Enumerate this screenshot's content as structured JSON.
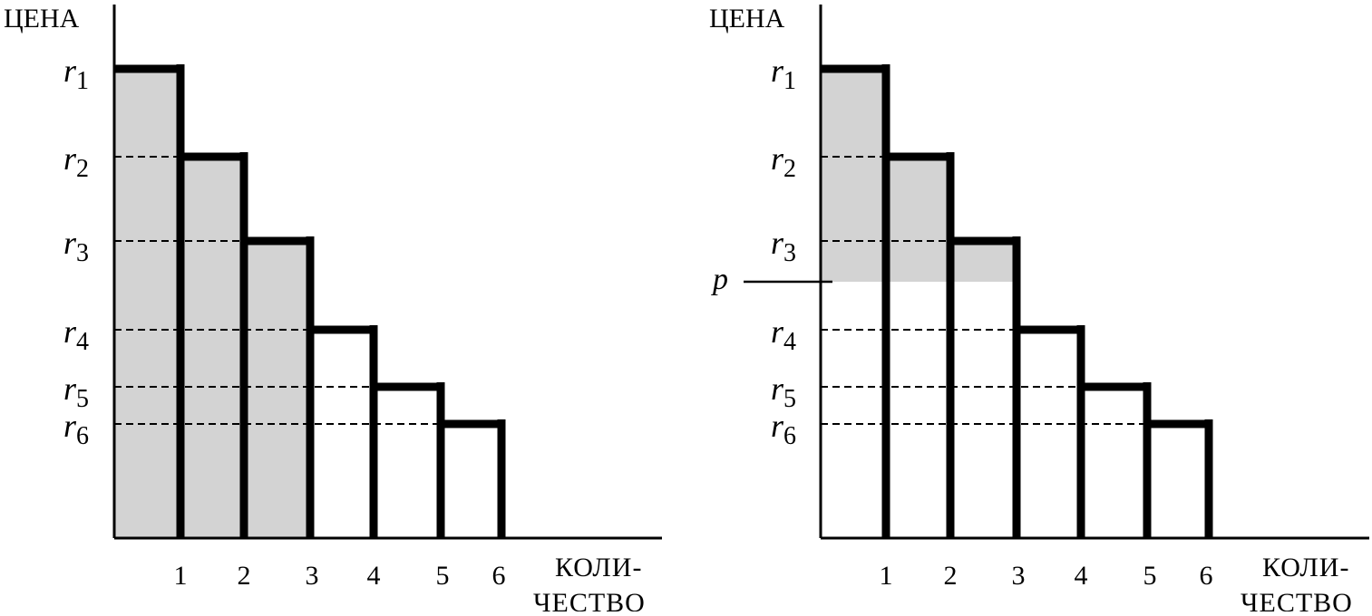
{
  "panels": [
    {
      "id": "left",
      "y_axis_label": "ЦЕНА",
      "x_axis_label_line1": "КОЛИ-",
      "x_axis_label_line2": "ЧЕСТВО",
      "price_levels": [
        {
          "letter": "r",
          "sub": "1"
        },
        {
          "letter": "r",
          "sub": "2"
        },
        {
          "letter": "r",
          "sub": "3"
        },
        {
          "letter": "r",
          "sub": "4"
        },
        {
          "letter": "r",
          "sub": "5"
        },
        {
          "letter": "r",
          "sub": "6"
        }
      ],
      "x_ticks": [
        "1",
        "2",
        "3",
        "4",
        "5",
        "6"
      ],
      "shaded_units": 3,
      "price_line_label": null
    },
    {
      "id": "right",
      "y_axis_label": "ЦЕНА",
      "x_axis_label_line1": "КОЛИ-",
      "x_axis_label_line2": "ЧЕСТВО",
      "price_levels": [
        {
          "letter": "r",
          "sub": "1"
        },
        {
          "letter": "r",
          "sub": "2"
        },
        {
          "letter": "r",
          "sub": "3"
        },
        {
          "letter": "r",
          "sub": "4"
        },
        {
          "letter": "r",
          "sub": "5"
        },
        {
          "letter": "r",
          "sub": "6"
        }
      ],
      "x_ticks": [
        "1",
        "2",
        "3",
        "4",
        "5",
        "6"
      ],
      "shaded_units": 3,
      "price_line_label": "p"
    }
  ],
  "colors": {
    "shade": "#d3d3d3",
    "line": "#000000"
  }
}
